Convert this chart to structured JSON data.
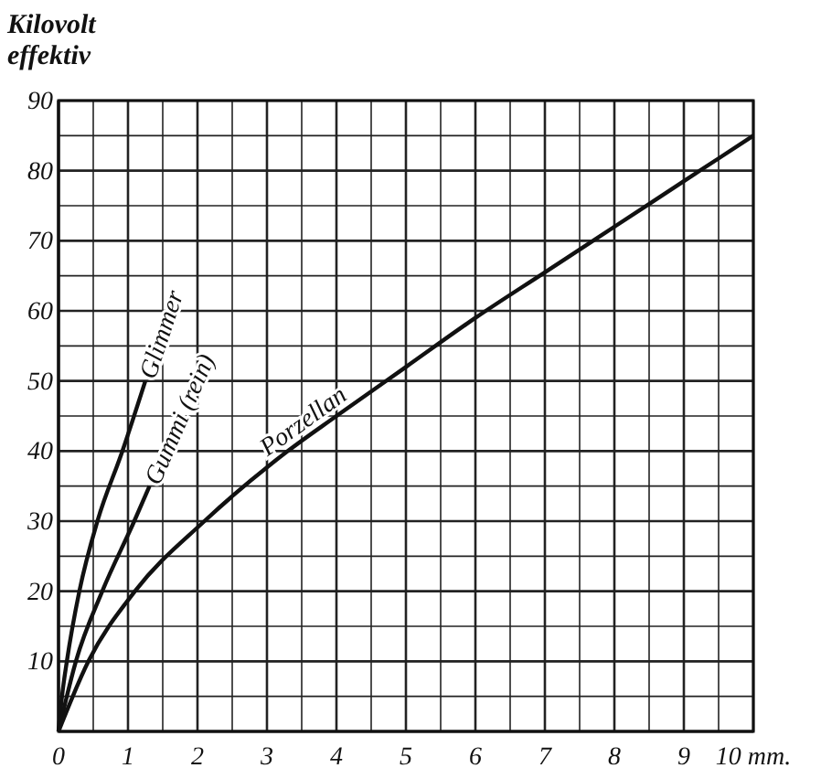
{
  "chart_data": {
    "type": "line",
    "ylabel": "Kilovolt\neffektiv",
    "xlim": [
      0,
      10
    ],
    "ylim": [
      0,
      90
    ],
    "xticks": [
      0,
      {
        "value": 0.5,
        "label": null
      },
      1,
      {
        "value": 1.5,
        "label": null
      },
      2,
      {
        "value": 2.5,
        "label": null
      },
      3,
      {
        "value": 3.5,
        "label": null
      },
      4,
      {
        "value": 4.5,
        "label": null
      },
      5,
      {
        "value": 5.5,
        "label": null
      },
      6,
      {
        "value": 6.5,
        "label": null
      },
      7,
      {
        "value": 7.5,
        "label": null
      },
      8,
      {
        "value": 8.5,
        "label": null
      },
      9,
      {
        "value": 9.5,
        "label": null
      },
      {
        "value": 10,
        "label": "10 mm."
      }
    ],
    "yticks": [
      {
        "value": 0,
        "label": null
      },
      {
        "value": 5,
        "label": null
      },
      10,
      {
        "value": 15,
        "label": null
      },
      20,
      {
        "value": 25,
        "label": null
      },
      30,
      {
        "value": 35,
        "label": null
      },
      40,
      {
        "value": 45,
        "label": null
      },
      50,
      {
        "value": 55,
        "label": null
      },
      60,
      {
        "value": 65,
        "label": null
      },
      70,
      {
        "value": 75,
        "label": null
      },
      80,
      {
        "value": 85,
        "label": null
      },
      90
    ],
    "grid": true,
    "legend": false,
    "marker": "none",
    "line_style": "solid",
    "series": [
      {
        "name": "Glimmer",
        "color": "#111111",
        "x": [
          0,
          0.05,
          0.12,
          0.3,
          0.56,
          0.92,
          1.25
        ],
        "values": [
          0,
          5,
          10,
          20,
          30,
          40,
          50
        ]
      },
      {
        "name": "Gummi (rein)",
        "color": "#111111",
        "x": [
          0,
          0.25,
          0.63,
          1.09,
          1.31
        ],
        "values": [
          0,
          10,
          20,
          30,
          35
        ]
      },
      {
        "name": "Porzellan",
        "color": "#111111",
        "x": [
          0,
          0.43,
          1.1,
          2.1,
          3.3,
          4,
          5,
          6,
          7,
          8,
          9,
          10
        ],
        "values": [
          0,
          10,
          20,
          30,
          40,
          45,
          52,
          59,
          65.5,
          72,
          78.5,
          85
        ]
      }
    ]
  }
}
